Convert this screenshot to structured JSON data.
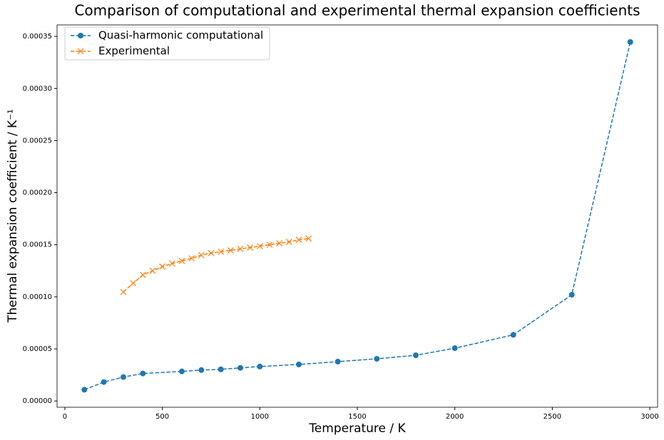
{
  "chart_data": {
    "type": "line",
    "title": "Comparison of computational and experimental thermal expansion coefficients",
    "xlabel": "Temperature / K",
    "ylabel": "Thermal expansion coefficient / K⁻¹",
    "xlim": [
      -40,
      3040
    ],
    "ylim": [
      -6e-06,
      0.000361
    ],
    "xticks": [
      0,
      500,
      1000,
      1500,
      2000,
      2500,
      3000
    ],
    "yticks": [
      {
        "value": 0,
        "label": "0.00000"
      },
      {
        "value": 5e-05,
        "label": "0.00005"
      },
      {
        "value": 0.0001,
        "label": "0.00010"
      },
      {
        "value": 0.00015,
        "label": "0.00015"
      },
      {
        "value": 0.0002,
        "label": "0.00020"
      },
      {
        "value": 0.00025,
        "label": "0.00025"
      },
      {
        "value": 0.0003,
        "label": "0.00030"
      },
      {
        "value": 0.00035,
        "label": "0.00035"
      }
    ],
    "legend": "upper left",
    "series": [
      {
        "name": "Quasi-harmonic computational",
        "color": "#1f77b4",
        "marker": "circle",
        "x": [
          100,
          200,
          300,
          400,
          600,
          700,
          800,
          900,
          1000,
          1200,
          1400,
          1600,
          1800,
          2000,
          2300,
          2600,
          2900
        ],
        "values": [
          1.08e-05,
          1.82e-05,
          2.3e-05,
          2.64e-05,
          2.84e-05,
          2.97e-05,
          3.04e-05,
          3.18e-05,
          3.31e-05,
          3.51e-05,
          3.78e-05,
          4.05e-05,
          4.39e-05,
          5.07e-05,
          6.35e-05,
          0.000102,
          0.0003446
        ]
      },
      {
        "name": "Experimental",
        "color": "#ff7f0e",
        "marker": "x",
        "x": [
          300,
          350,
          400,
          450,
          500,
          550,
          600,
          650,
          700,
          750,
          800,
          850,
          900,
          950,
          1000,
          1050,
          1100,
          1150,
          1200,
          1250
        ],
        "values": [
          0.0001047,
          0.000113,
          0.000121,
          0.000125,
          0.000129,
          0.000132,
          0.0001345,
          0.000137,
          0.00014,
          0.000142,
          0.0001433,
          0.0001446,
          0.000146,
          0.0001473,
          0.0001487,
          0.00015,
          0.0001514,
          0.0001527,
          0.0001547,
          0.000156
        ]
      }
    ]
  }
}
